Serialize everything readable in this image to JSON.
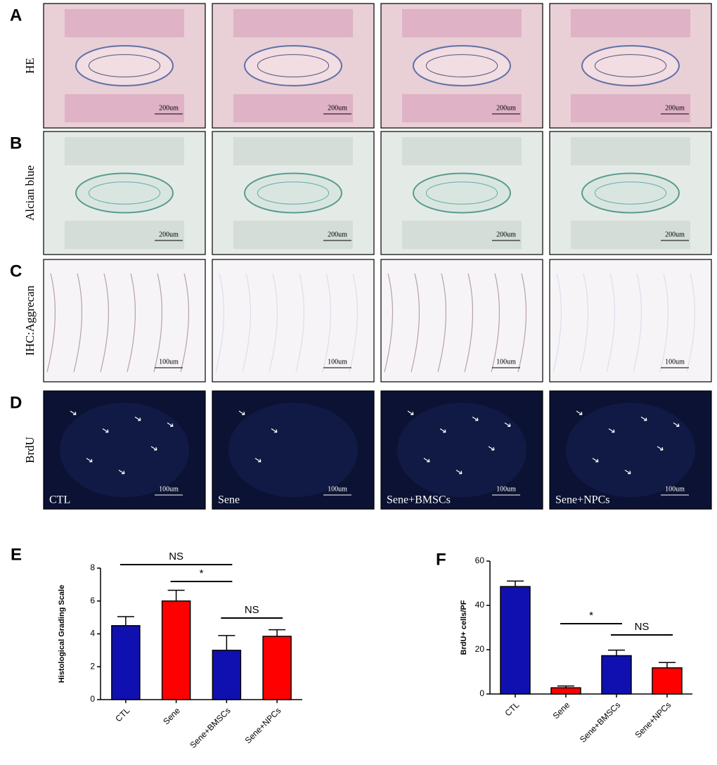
{
  "panels": {
    "letters": [
      "A",
      "B",
      "C",
      "D"
    ],
    "rows": [
      "HE",
      "Alcian blue",
      "IHC:Aggrecan",
      "BrdU"
    ],
    "scale_bars": [
      [
        "200um",
        "200um",
        "200um",
        "200um"
      ],
      [
        "200um",
        "200um",
        "200um",
        "200um"
      ],
      [
        "100um",
        "100um",
        "100um",
        "100um"
      ],
      [
        "100um",
        "100um",
        "100um",
        "100um"
      ]
    ],
    "groups": [
      "CTL",
      "Sene",
      "Sene+BMSCs",
      "Sene+NPCs"
    ]
  },
  "chart_data": [
    {
      "type": "bar",
      "panel": "E",
      "y_label": "Histological Grading Scale",
      "categories": [
        "CTL",
        "Sene",
        "Sene+BMSCs",
        "Sene+NPCs"
      ],
      "values": [
        4.5,
        6.0,
        3.0,
        3.85
      ],
      "errors": [
        0.55,
        0.65,
        0.9,
        0.4
      ],
      "colors": [
        "#1010b0",
        "#ff0000",
        "#1010b0",
        "#ff0000"
      ],
      "ylim": [
        0,
        8
      ],
      "yticks": [
        0,
        2,
        4,
        6,
        8
      ],
      "annotations": [
        "NS",
        "*",
        "NS"
      ]
    },
    {
      "type": "bar",
      "panel": "F",
      "y_label": "BrdU+ cells/PF",
      "categories": [
        "CTL",
        "Sene",
        "Sene+BMSCs",
        "Sene+NPCs"
      ],
      "values": [
        48.5,
        2.8,
        17.3,
        11.8
      ],
      "errors": [
        2.5,
        0.8,
        2.5,
        2.4
      ],
      "colors": [
        "#1010b0",
        "#ff0000",
        "#1010b0",
        "#ff0000"
      ],
      "ylim": [
        0,
        60
      ],
      "yticks": [
        0,
        20,
        40,
        60
      ],
      "annotations": [
        "*",
        "NS"
      ]
    }
  ]
}
